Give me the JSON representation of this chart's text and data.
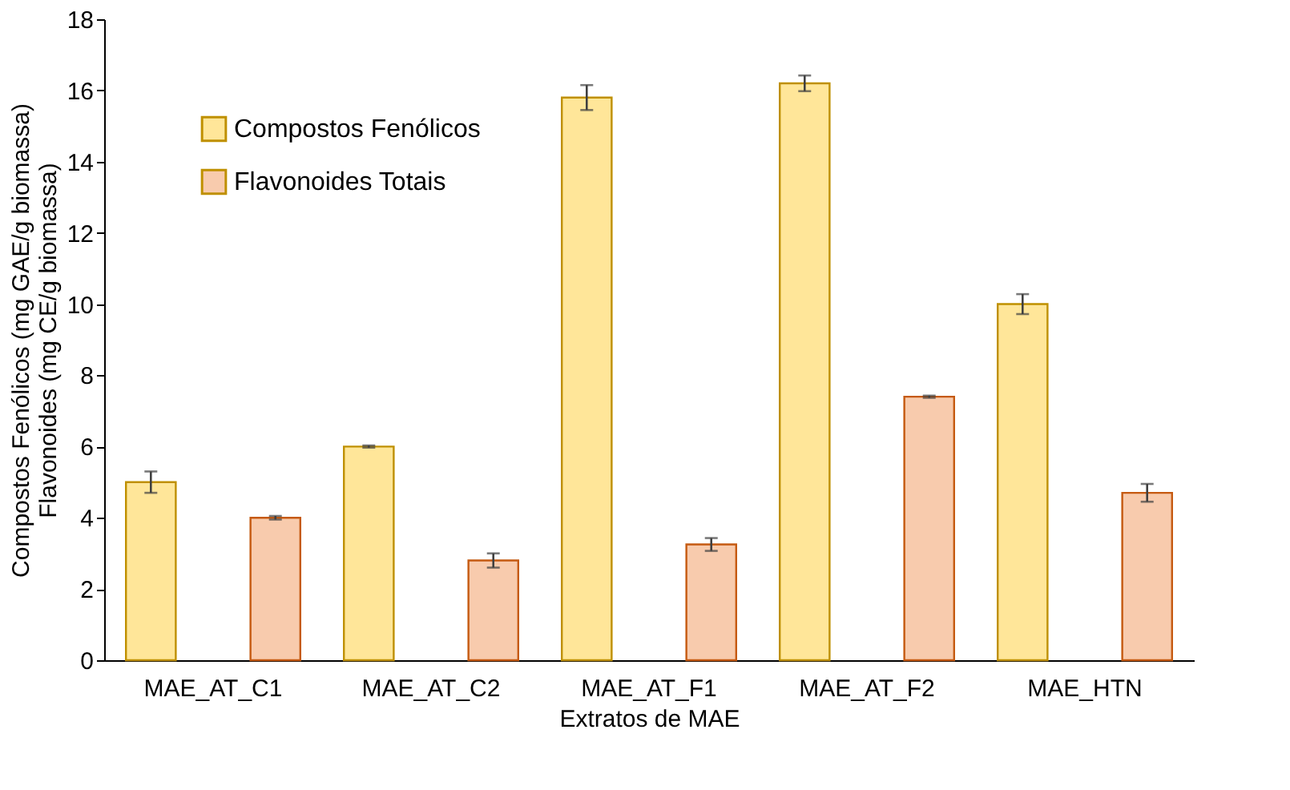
{
  "chart_data": {
    "type": "bar",
    "xlabel": "Extratos de MAE",
    "ylabel": "Compostos Fenólicos (mg GAE/g biomassa)\nFlavonoides (mg CE/g biomassa)",
    "categories": [
      "MAE_AT_C1",
      "MAE_AT_C2",
      "MAE_AT_F1",
      "MAE_AT_F2",
      "MAE_HTN"
    ],
    "series": [
      {
        "name": "Compostos Fenólicos",
        "color": "#ffe699",
        "values": [
          5.0,
          6.0,
          15.8,
          16.2,
          10.0
        ],
        "errors": [
          0.3,
          0.03,
          0.35,
          0.22,
          0.28
        ]
      },
      {
        "name": "Flavonoides Totais",
        "color": "#f8cbad",
        "values": [
          4.0,
          2.8,
          3.25,
          7.4,
          4.7
        ],
        "errors": [
          0.05,
          0.2,
          0.18,
          0.03,
          0.25
        ]
      }
    ],
    "ylim": [
      0,
      18
    ],
    "yticks": [
      0,
      2,
      4,
      6,
      8,
      10,
      12,
      14,
      16,
      18
    ],
    "grid": false,
    "legend": "top left"
  }
}
